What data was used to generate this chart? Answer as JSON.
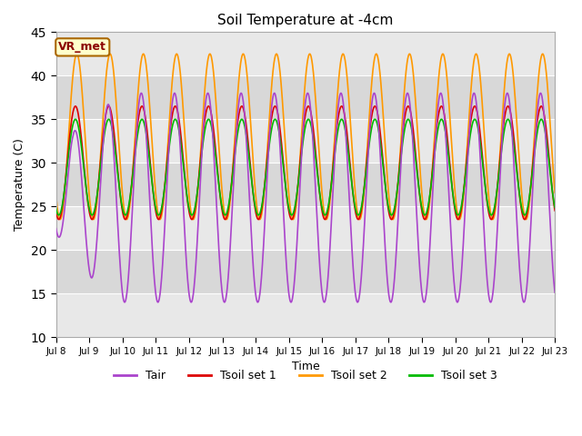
{
  "title": "Soil Temperature at -4cm",
  "xlabel": "Time",
  "ylabel": "Temperature (C)",
  "ylim": [
    10,
    45
  ],
  "yticks": [
    10,
    15,
    20,
    25,
    30,
    35,
    40,
    45
  ],
  "plot_bg": "#e8e8e8",
  "fig_bg": "#ffffff",
  "grid_color": "#ffffff",
  "band_color_light": "#d8d8d8",
  "band_color_dark": "#e8e8e8",
  "colors": {
    "Tair": "#aa44cc",
    "Tsoil_set1": "#dd0000",
    "Tsoil_set2": "#ff9900",
    "Tsoil_set3": "#00bb00"
  },
  "linewidth": 1.2,
  "annotation": {
    "text": "VR_met",
    "fontsize": 9,
    "color": "#8B0000",
    "bbox_facecolor": "#ffffcc",
    "bbox_edgecolor": "#aa6600"
  },
  "legend": {
    "labels": [
      "Tair",
      "Tsoil set 1",
      "Tsoil set 2",
      "Tsoil set 3"
    ],
    "ncol": 4,
    "fontsize": 9
  },
  "n_days": 15,
  "points_per_day": 144
}
